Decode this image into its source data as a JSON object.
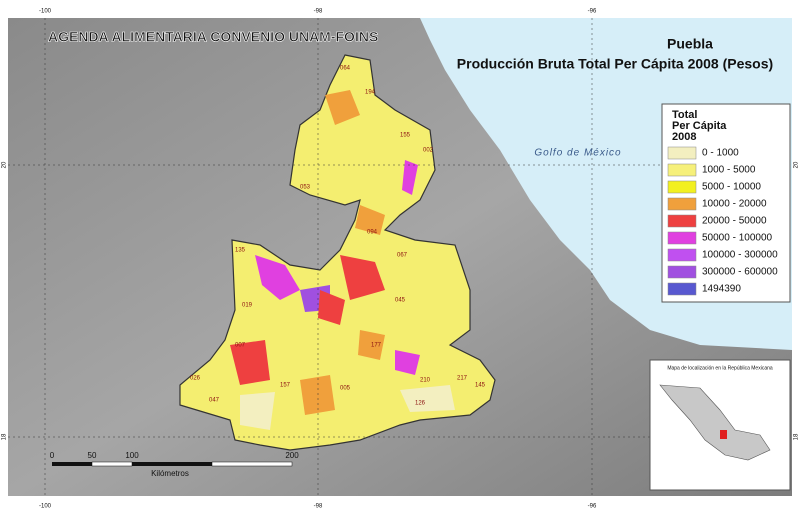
{
  "map": {
    "header": "AGENDA ALIMENTARIA  CONVENIO UNAM-FOINS",
    "title": "Puebla",
    "subtitle": "Producción Bruta Total Per Cápita 2008 (Pesos)",
    "sea_label": "Golfo de México",
    "legend": {
      "title": [
        "Total",
        "Per Cápita",
        "2008"
      ],
      "items": [
        {
          "label": "0 - 1000",
          "color": "#f3efc0"
        },
        {
          "label": "1000 - 5000",
          "color": "#f6f07a"
        },
        {
          "label": "5000 - 10000",
          "color": "#f2f020"
        },
        {
          "label": "10000 - 20000",
          "color": "#f0a03c"
        },
        {
          "label": "20000 - 50000",
          "color": "#ee4040"
        },
        {
          "label": "50000 - 100000",
          "color": "#e040e0"
        },
        {
          "label": "100000 - 300000",
          "color": "#c050f0"
        },
        {
          "label": "300000 - 600000",
          "color": "#a050e0"
        },
        {
          "label": "1494390",
          "color": "#5858d0"
        }
      ]
    },
    "graticule": {
      "top": [
        "-100",
        "-98",
        "-96"
      ],
      "bottom": [
        "-100",
        "-98",
        "-96"
      ],
      "left": [
        "20",
        "18"
      ],
      "right": [
        "20",
        "18"
      ]
    },
    "scale_bar": {
      "labels": [
        "0",
        "50",
        "100",
        "200"
      ],
      "unit": "Kilómetros"
    },
    "inset": {
      "title": "Mapa de localización en la República Mexicana"
    },
    "municipality_labels": [
      "064",
      "194",
      "053",
      "155",
      "002",
      "094",
      "067",
      "045",
      "177",
      "135",
      "019",
      "007",
      "026",
      "047",
      "157",
      "005",
      "210",
      "126",
      "145",
      "217"
    ]
  }
}
